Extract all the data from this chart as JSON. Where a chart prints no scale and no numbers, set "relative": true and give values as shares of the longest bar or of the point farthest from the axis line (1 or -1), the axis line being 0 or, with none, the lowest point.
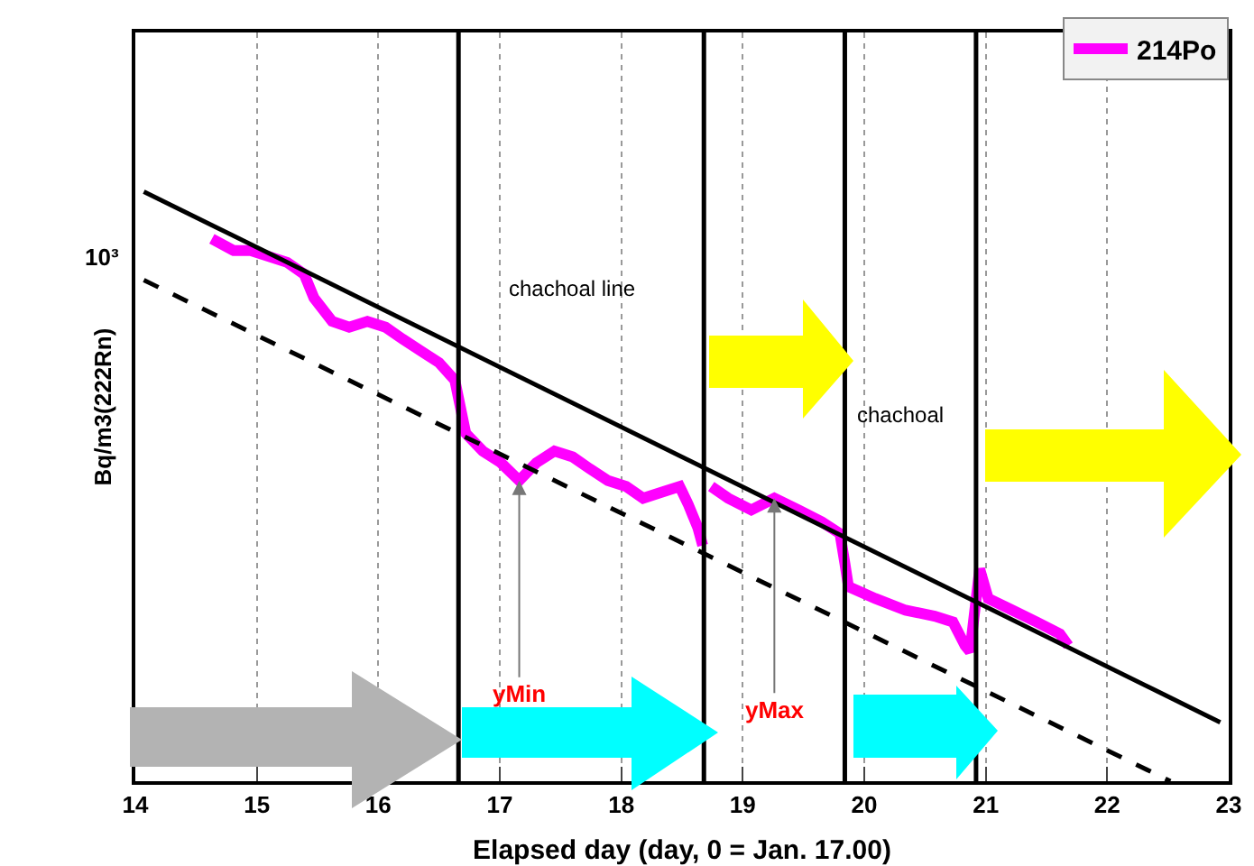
{
  "chart_data": {
    "type": "line",
    "xlabel": "Elapsed day (day, 0 = Jan. 17.00)",
    "ylabel": "Bq/m3(222Rn)",
    "xlim": [
      14,
      23
    ],
    "xticks": [
      14,
      15,
      16,
      17,
      18,
      19,
      20,
      21,
      22,
      23
    ],
    "relative": true,
    "grid": "x",
    "legend": "top right",
    "marker": "none",
    "series": [
      {
        "name": "214Po",
        "color": "#ff00ff",
        "line_style": "solid",
        "x": [
          14.63,
          14.81,
          14.95,
          15.1,
          15.25,
          15.39,
          15.47,
          15.62,
          15.76,
          15.91,
          16.06,
          16.2,
          16.35,
          16.5,
          16.63,
          16.67,
          16.72,
          16.86,
          17.01,
          17.16,
          17.3,
          17.45,
          17.6,
          17.74,
          17.89,
          18.04,
          18.18,
          18.33,
          18.48,
          18.55,
          18.63,
          18.67,
          null,
          18.74,
          18.88,
          19.07,
          19.26,
          19.46,
          19.65,
          19.8,
          19.84,
          19.87,
          20.09,
          20.34,
          20.58,
          20.73,
          20.83,
          20.87,
          20.95,
          21.02,
          21.22,
          21.42,
          21.61,
          21.68
        ],
        "values": [
          0.92,
          0.9,
          0.9,
          0.89,
          0.88,
          0.86,
          0.82,
          0.78,
          0.77,
          0.78,
          0.77,
          0.75,
          0.73,
          0.71,
          0.68,
          0.64,
          0.59,
          0.56,
          0.54,
          0.51,
          0.54,
          0.56,
          0.55,
          0.53,
          0.51,
          0.5,
          0.48,
          0.49,
          0.5,
          0.47,
          0.43,
          0.4,
          null,
          0.5,
          0.48,
          0.46,
          0.48,
          0.46,
          0.44,
          0.42,
          0.37,
          0.33,
          0.31,
          0.29,
          0.28,
          0.27,
          0.23,
          0.22,
          0.36,
          0.31,
          0.29,
          0.27,
          0.25,
          0.23
        ]
      },
      {
        "color": "#000000",
        "line_style": "solid",
        "x": [
          14.07,
          22.93
        ],
        "values": [
          1,
          0.1
        ]
      },
      {
        "color": "#000000",
        "line_style": "dashed",
        "x": [
          14.07,
          22.52
        ],
        "values": [
          0.85,
          0
        ]
      }
    ],
    "ref_lines": [
      {
        "axis": "x",
        "value": 16.66,
        "color": "#000000"
      },
      {
        "axis": "x",
        "value": 18.68,
        "color": "#000000"
      },
      {
        "axis": "x",
        "value": 19.84,
        "color": "#000000"
      },
      {
        "axis": "x",
        "value": 20.92,
        "color": "#000000"
      }
    ],
    "annotations": [
      "10³",
      "chachoal line",
      "chachoal",
      {
        "text": "yMin",
        "x": 17.16,
        "y": 0.51
      },
      {
        "text": "yMax",
        "x": 19.26,
        "y": 0.48
      }
    ]
  }
}
